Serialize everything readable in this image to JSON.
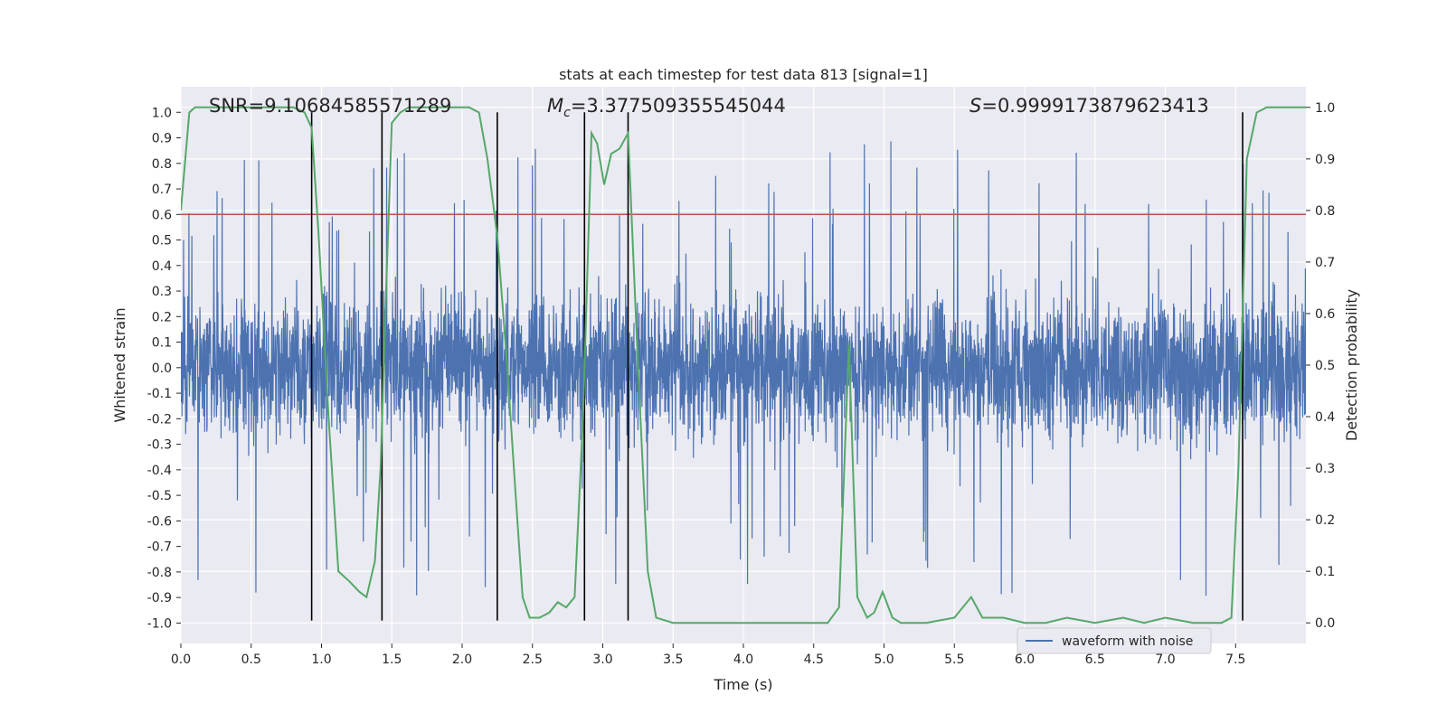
{
  "chart_data": {
    "type": "line",
    "title": "stats at each timestep for test data 813 [signal=1]",
    "xlabel": "Time (s)",
    "ylabel": "Whitened strain",
    "y2label": "Detection probability",
    "xlim": [
      0.0,
      8.0
    ],
    "ylim": [
      -1.08,
      1.1
    ],
    "y2lim": [
      -0.04,
      1.04
    ],
    "xticks": [
      "0.0",
      "0.5",
      "1.0",
      "1.5",
      "2.0",
      "2.5",
      "3.0",
      "3.5",
      "4.0",
      "4.5",
      "5.0",
      "5.5",
      "6.0",
      "6.5",
      "7.0",
      "7.5"
    ],
    "yticks": [
      "1.0",
      "0.9",
      "0.8",
      "0.7",
      "0.6",
      "0.5",
      "0.4",
      "0.3",
      "0.2",
      "0.1",
      "0.0",
      "-0.1",
      "-0.2",
      "-0.3",
      "-0.4",
      "-0.5",
      "-0.6",
      "-0.7",
      "-0.8",
      "-0.9",
      "-1.0"
    ],
    "y2ticks": [
      "1.0",
      "0.9",
      "0.8",
      "0.7",
      "0.6",
      "0.5",
      "0.4",
      "0.3",
      "0.2",
      "0.1",
      "0.0"
    ],
    "grid": true,
    "legend": {
      "position": "bottom-right",
      "entries": [
        "waveform with noise"
      ]
    },
    "annotations": {
      "snr": "SNR=9.10684585571289",
      "mc_symbol": "M",
      "mc_sub": "c",
      "mc_value": "=3.377509355545044",
      "s_symbol": "S",
      "s_value": "=0.9999173879623413"
    },
    "threshold": {
      "value": 0.6,
      "color": "#c44e52"
    },
    "vlines_x": [
      0.93,
      1.43,
      2.25,
      2.87,
      3.18,
      7.55
    ],
    "vline_y_range": [
      -0.99,
      1.0
    ],
    "series": [
      {
        "name": "waveform with noise",
        "color": "#4c72b0",
        "axis": "left",
        "note": "dense noisy strain, envelope approx ±0.4 with spikes up to ±1.0"
      },
      {
        "name": "detection probability",
        "color": "#55a868",
        "axis": "right",
        "x": [
          0.0,
          0.06,
          0.1,
          0.2,
          0.4,
          0.6,
          0.8,
          0.88,
          0.93,
          0.98,
          1.05,
          1.12,
          1.2,
          1.27,
          1.32,
          1.38,
          1.42,
          1.46,
          1.5,
          1.56,
          1.62,
          1.7,
          1.8,
          1.9,
          2.0,
          2.05,
          2.12,
          2.18,
          2.25,
          2.32,
          2.38,
          2.43,
          2.48,
          2.55,
          2.62,
          2.68,
          2.74,
          2.8,
          2.86,
          2.92,
          2.96,
          3.01,
          3.06,
          3.12,
          3.18,
          3.25,
          3.32,
          3.38,
          3.5,
          3.7,
          4.0,
          4.3,
          4.6,
          4.68,
          4.75,
          4.81,
          4.88,
          4.93,
          4.99,
          5.06,
          5.12,
          5.3,
          5.5,
          5.62,
          5.7,
          5.85,
          6.0,
          6.15,
          6.3,
          6.5,
          6.7,
          6.85,
          7.0,
          7.2,
          7.4,
          7.47,
          7.52,
          7.58,
          7.65,
          7.72,
          7.8,
          8.0
        ],
        "values": [
          0.8,
          0.99,
          1.0,
          1.0,
          1.0,
          1.0,
          1.0,
          0.99,
          0.96,
          0.75,
          0.4,
          0.1,
          0.08,
          0.06,
          0.05,
          0.12,
          0.3,
          0.65,
          0.97,
          0.99,
          1.0,
          1.0,
          1.0,
          1.0,
          1.0,
          1.0,
          0.99,
          0.9,
          0.75,
          0.5,
          0.25,
          0.05,
          0.01,
          0.01,
          0.02,
          0.04,
          0.03,
          0.05,
          0.4,
          0.95,
          0.93,
          0.85,
          0.91,
          0.92,
          0.95,
          0.5,
          0.1,
          0.01,
          0.0,
          0.0,
          0.0,
          0.0,
          0.0,
          0.03,
          0.54,
          0.05,
          0.01,
          0.02,
          0.06,
          0.01,
          0.0,
          0.0,
          0.01,
          0.05,
          0.01,
          0.01,
          0.0,
          0.0,
          0.01,
          0.0,
          0.01,
          0.0,
          0.01,
          0.0,
          0.0,
          0.01,
          0.3,
          0.9,
          0.99,
          1.0,
          1.0,
          1.0
        ]
      }
    ]
  }
}
